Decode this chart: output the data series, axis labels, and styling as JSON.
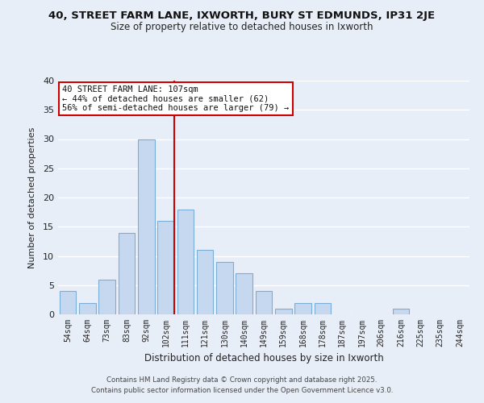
{
  "title1": "40, STREET FARM LANE, IXWORTH, BURY ST EDMUNDS, IP31 2JE",
  "title2": "Size of property relative to detached houses in Ixworth",
  "xlabel": "Distribution of detached houses by size in Ixworth",
  "ylabel": "Number of detached properties",
  "bar_labels": [
    "54sqm",
    "64sqm",
    "73sqm",
    "83sqm",
    "92sqm",
    "102sqm",
    "111sqm",
    "121sqm",
    "130sqm",
    "140sqm",
    "149sqm",
    "159sqm",
    "168sqm",
    "178sqm",
    "187sqm",
    "197sqm",
    "206sqm",
    "216sqm",
    "225sqm",
    "235sqm",
    "244sqm"
  ],
  "bar_values": [
    4,
    2,
    6,
    14,
    30,
    16,
    18,
    11,
    9,
    7,
    4,
    1,
    2,
    2,
    0,
    0,
    0,
    1,
    0,
    0,
    0
  ],
  "bar_color": "#c5d8f0",
  "bar_edge_color": "#7aaed6",
  "background_color": "#e8eef8",
  "grid_color": "#ffffff",
  "vline_color": "#cc0000",
  "vline_index": 5.5,
  "annotation_title": "40 STREET FARM LANE: 107sqm",
  "annotation_line1": "← 44% of detached houses are smaller (62)",
  "annotation_line2": "56% of semi-detached houses are larger (79) →",
  "annotation_box_color": "#ffffff",
  "annotation_border_color": "#cc0000",
  "ylim": [
    0,
    40
  ],
  "yticks": [
    0,
    5,
    10,
    15,
    20,
    25,
    30,
    35,
    40
  ],
  "footer1": "Contains HM Land Registry data © Crown copyright and database right 2025.",
  "footer2": "Contains public sector information licensed under the Open Government Licence v3.0."
}
